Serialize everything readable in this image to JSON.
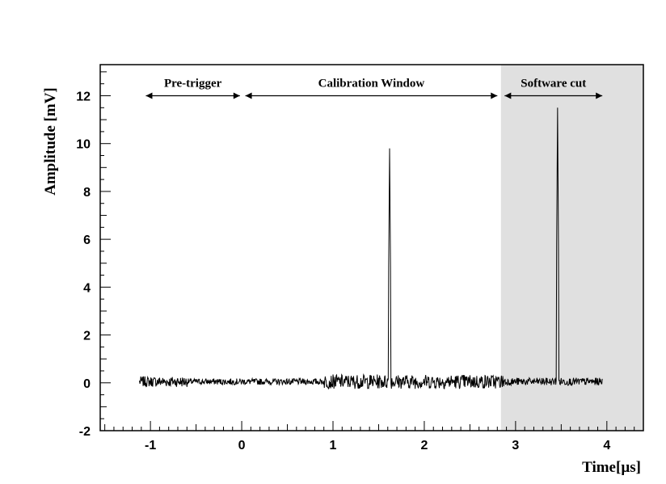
{
  "chart_data": {
    "type": "line",
    "title": "",
    "xlabel": "Time[µs]",
    "ylabel": "Amplitude [mV]",
    "xlim": [
      -1.55,
      4.4
    ],
    "ylim": [
      -2,
      13.3
    ],
    "x_ticks": [
      -1,
      0,
      1,
      2,
      3,
      4
    ],
    "x_tick_labels": [
      "-1",
      "0",
      "1",
      "2",
      "3",
      "4"
    ],
    "y_ticks": [
      -2,
      0,
      2,
      4,
      6,
      8,
      10,
      12
    ],
    "y_tick_labels": [
      "-2",
      "0",
      "2",
      "4",
      "6",
      "8",
      "10",
      "12"
    ],
    "grid": false,
    "shaded_region": {
      "x_start": 2.84,
      "x_end": 4.4,
      "color": "#e0e0e0"
    },
    "annotations": [
      {
        "label": "Pre-trigger",
        "x_start": -1.05,
        "x_end": -0.02,
        "y": 12.0
      },
      {
        "label": "Calibration Window",
        "x_start": 0.04,
        "x_end": 2.8,
        "y": 12.0
      },
      {
        "label": "Software cut",
        "x_start": 2.88,
        "x_end": 3.95,
        "y": 12.0
      }
    ],
    "series": [
      {
        "x_start": -1.12,
        "x_end": 3.95,
        "baseline": 0.05,
        "noise_segments": [
          {
            "x_from": -1.12,
            "x_to": -0.6,
            "amplitude": 0.22
          },
          {
            "x_from": -0.6,
            "x_to": 0.9,
            "amplitude": 0.13
          },
          {
            "x_from": 0.9,
            "x_to": 2.9,
            "amplitude": 0.3
          },
          {
            "x_from": 2.9,
            "x_to": 3.95,
            "amplitude": 0.16
          }
        ],
        "peaks": [
          {
            "x": 1.62,
            "y": 9.8
          },
          {
            "x": 3.46,
            "y": 11.5
          }
        ],
        "color": "#000000"
      }
    ]
  }
}
